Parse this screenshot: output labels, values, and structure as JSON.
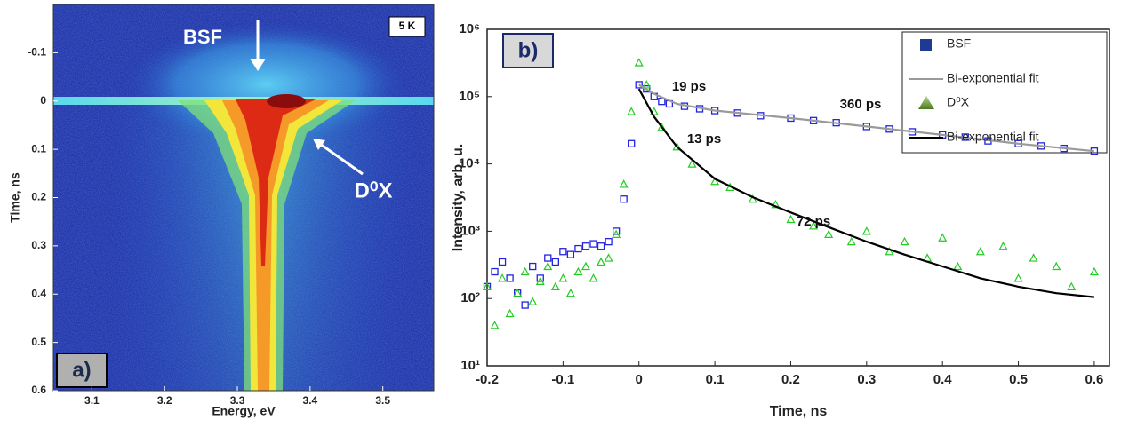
{
  "chart_data": [
    {
      "type": "image",
      "xlabel": "Energy, eV",
      "ylabel": "Time, ns",
      "xlim": [
        3.047,
        3.57
      ],
      "xticks": [
        3.1,
        3.2,
        3.3,
        3.4,
        3.5
      ],
      "ylim": [
        -0.2,
        0.6
      ],
      "y_inverted": true,
      "yticks": [
        -0.1,
        0,
        0.1,
        0.2,
        0.3,
        0.4,
        0.5,
        0.6
      ],
      "annotations": [
        "BSF",
        "D⁰X",
        "5 K",
        "a)"
      ]
    },
    {
      "type": "scatter",
      "xlabel": "Time, ns",
      "ylabel": "Intensity, arb. u.",
      "xlim": [
        -0.2,
        0.62
      ],
      "xticks": [
        -0.2,
        -0.1,
        0,
        0.1,
        0.2,
        0.3,
        0.4,
        0.5,
        0.6
      ],
      "ylim": [
        10,
        1000000
      ],
      "log_y": true,
      "yticks": [
        {
          "value": 10,
          "label": "10¹"
        },
        {
          "value": 100,
          "label": "10²"
        },
        {
          "value": 1000,
          "label": "10³"
        },
        {
          "value": 10000,
          "label": "10⁴"
        },
        {
          "value": 100000,
          "label": "10⁵"
        },
        {
          "value": 1000000,
          "label": "10⁶"
        }
      ],
      "legend": "upper right",
      "annotations": [
        "b)",
        "19 ps",
        "360 ps",
        "13 ps",
        "72 ps"
      ],
      "series": [
        {
          "name": "BSF",
          "color": "#2323e0",
          "style": "markers",
          "marker": "square",
          "x": [
            -0.2,
            -0.19,
            -0.18,
            -0.17,
            -0.16,
            -0.15,
            -0.14,
            -0.13,
            -0.12,
            -0.11,
            -0.1,
            -0.09,
            -0.08,
            -0.07,
            -0.06,
            -0.05,
            -0.04,
            -0.03,
            -0.02,
            -0.01,
            0,
            0.01,
            0.02,
            0.03,
            0.04,
            0.06,
            0.08,
            0.1,
            0.13,
            0.16,
            0.2,
            0.23,
            0.26,
            0.3,
            0.33,
            0.36,
            0.4,
            0.43,
            0.46,
            0.5,
            0.53,
            0.56,
            0.6
          ],
          "values": [
            150,
            250,
            350,
            200,
            120,
            80,
            300,
            200,
            400,
            350,
            500,
            450,
            550,
            600,
            650,
            600,
            700,
            1000,
            3000,
            20000,
            150000,
            130000,
            100000,
            85000,
            78000,
            72000,
            66000,
            62000,
            57000,
            52000,
            48000,
            44000,
            41000,
            36000,
            33000,
            30000,
            27000,
            25000,
            22000,
            20000,
            18500,
            17000,
            15500
          ]
        },
        {
          "name": "Bi-exponential fit",
          "color": "#9a9a9a",
          "style": "line",
          "x": [
            0,
            0.02,
            0.05,
            0.1,
            0.2,
            0.3,
            0.4,
            0.5,
            0.6
          ],
          "values": [
            150000,
            110000,
            78000,
            62000,
            48000,
            36000,
            27000,
            20000,
            15500
          ]
        },
        {
          "name": "D⁰X",
          "color": "#22cc22",
          "style": "markers",
          "marker": "triangle",
          "x": [
            -0.2,
            -0.19,
            -0.18,
            -0.17,
            -0.16,
            -0.15,
            -0.14,
            -0.13,
            -0.12,
            -0.11,
            -0.1,
            -0.09,
            -0.08,
            -0.07,
            -0.06,
            -0.05,
            -0.04,
            -0.03,
            -0.02,
            -0.01,
            0,
            0.01,
            0.02,
            0.03,
            0.05,
            0.07,
            0.1,
            0.12,
            0.15,
            0.18,
            0.2,
            0.23,
            0.25,
            0.28,
            0.3,
            0.33,
            0.35,
            0.38,
            0.4,
            0.42,
            0.45,
            0.48,
            0.5,
            0.52,
            0.55,
            0.57,
            0.6
          ],
          "values": [
            150,
            40,
            200,
            60,
            120,
            250,
            90,
            180,
            300,
            150,
            200,
            120,
            250,
            300,
            200,
            350,
            400,
            900,
            5000,
            60000,
            320000,
            150000,
            60000,
            35000,
            18000,
            10000,
            5500,
            4500,
            3000,
            2500,
            1500,
            1200,
            900,
            700,
            1000,
            500,
            700,
            400,
            800,
            300,
            500,
            600,
            200,
            400,
            300,
            150,
            250
          ]
        },
        {
          "name": "Bi-exponential fit",
          "color": "#000000",
          "style": "line",
          "x": [
            0,
            0.02,
            0.05,
            0.1,
            0.15,
            0.2,
            0.25,
            0.3,
            0.35,
            0.4,
            0.45,
            0.5,
            0.55,
            0.6
          ],
          "values": [
            130000,
            50000,
            18000,
            6000,
            3200,
            1900,
            1150,
            700,
            450,
            300,
            200,
            150,
            120,
            105
          ]
        }
      ]
    }
  ]
}
